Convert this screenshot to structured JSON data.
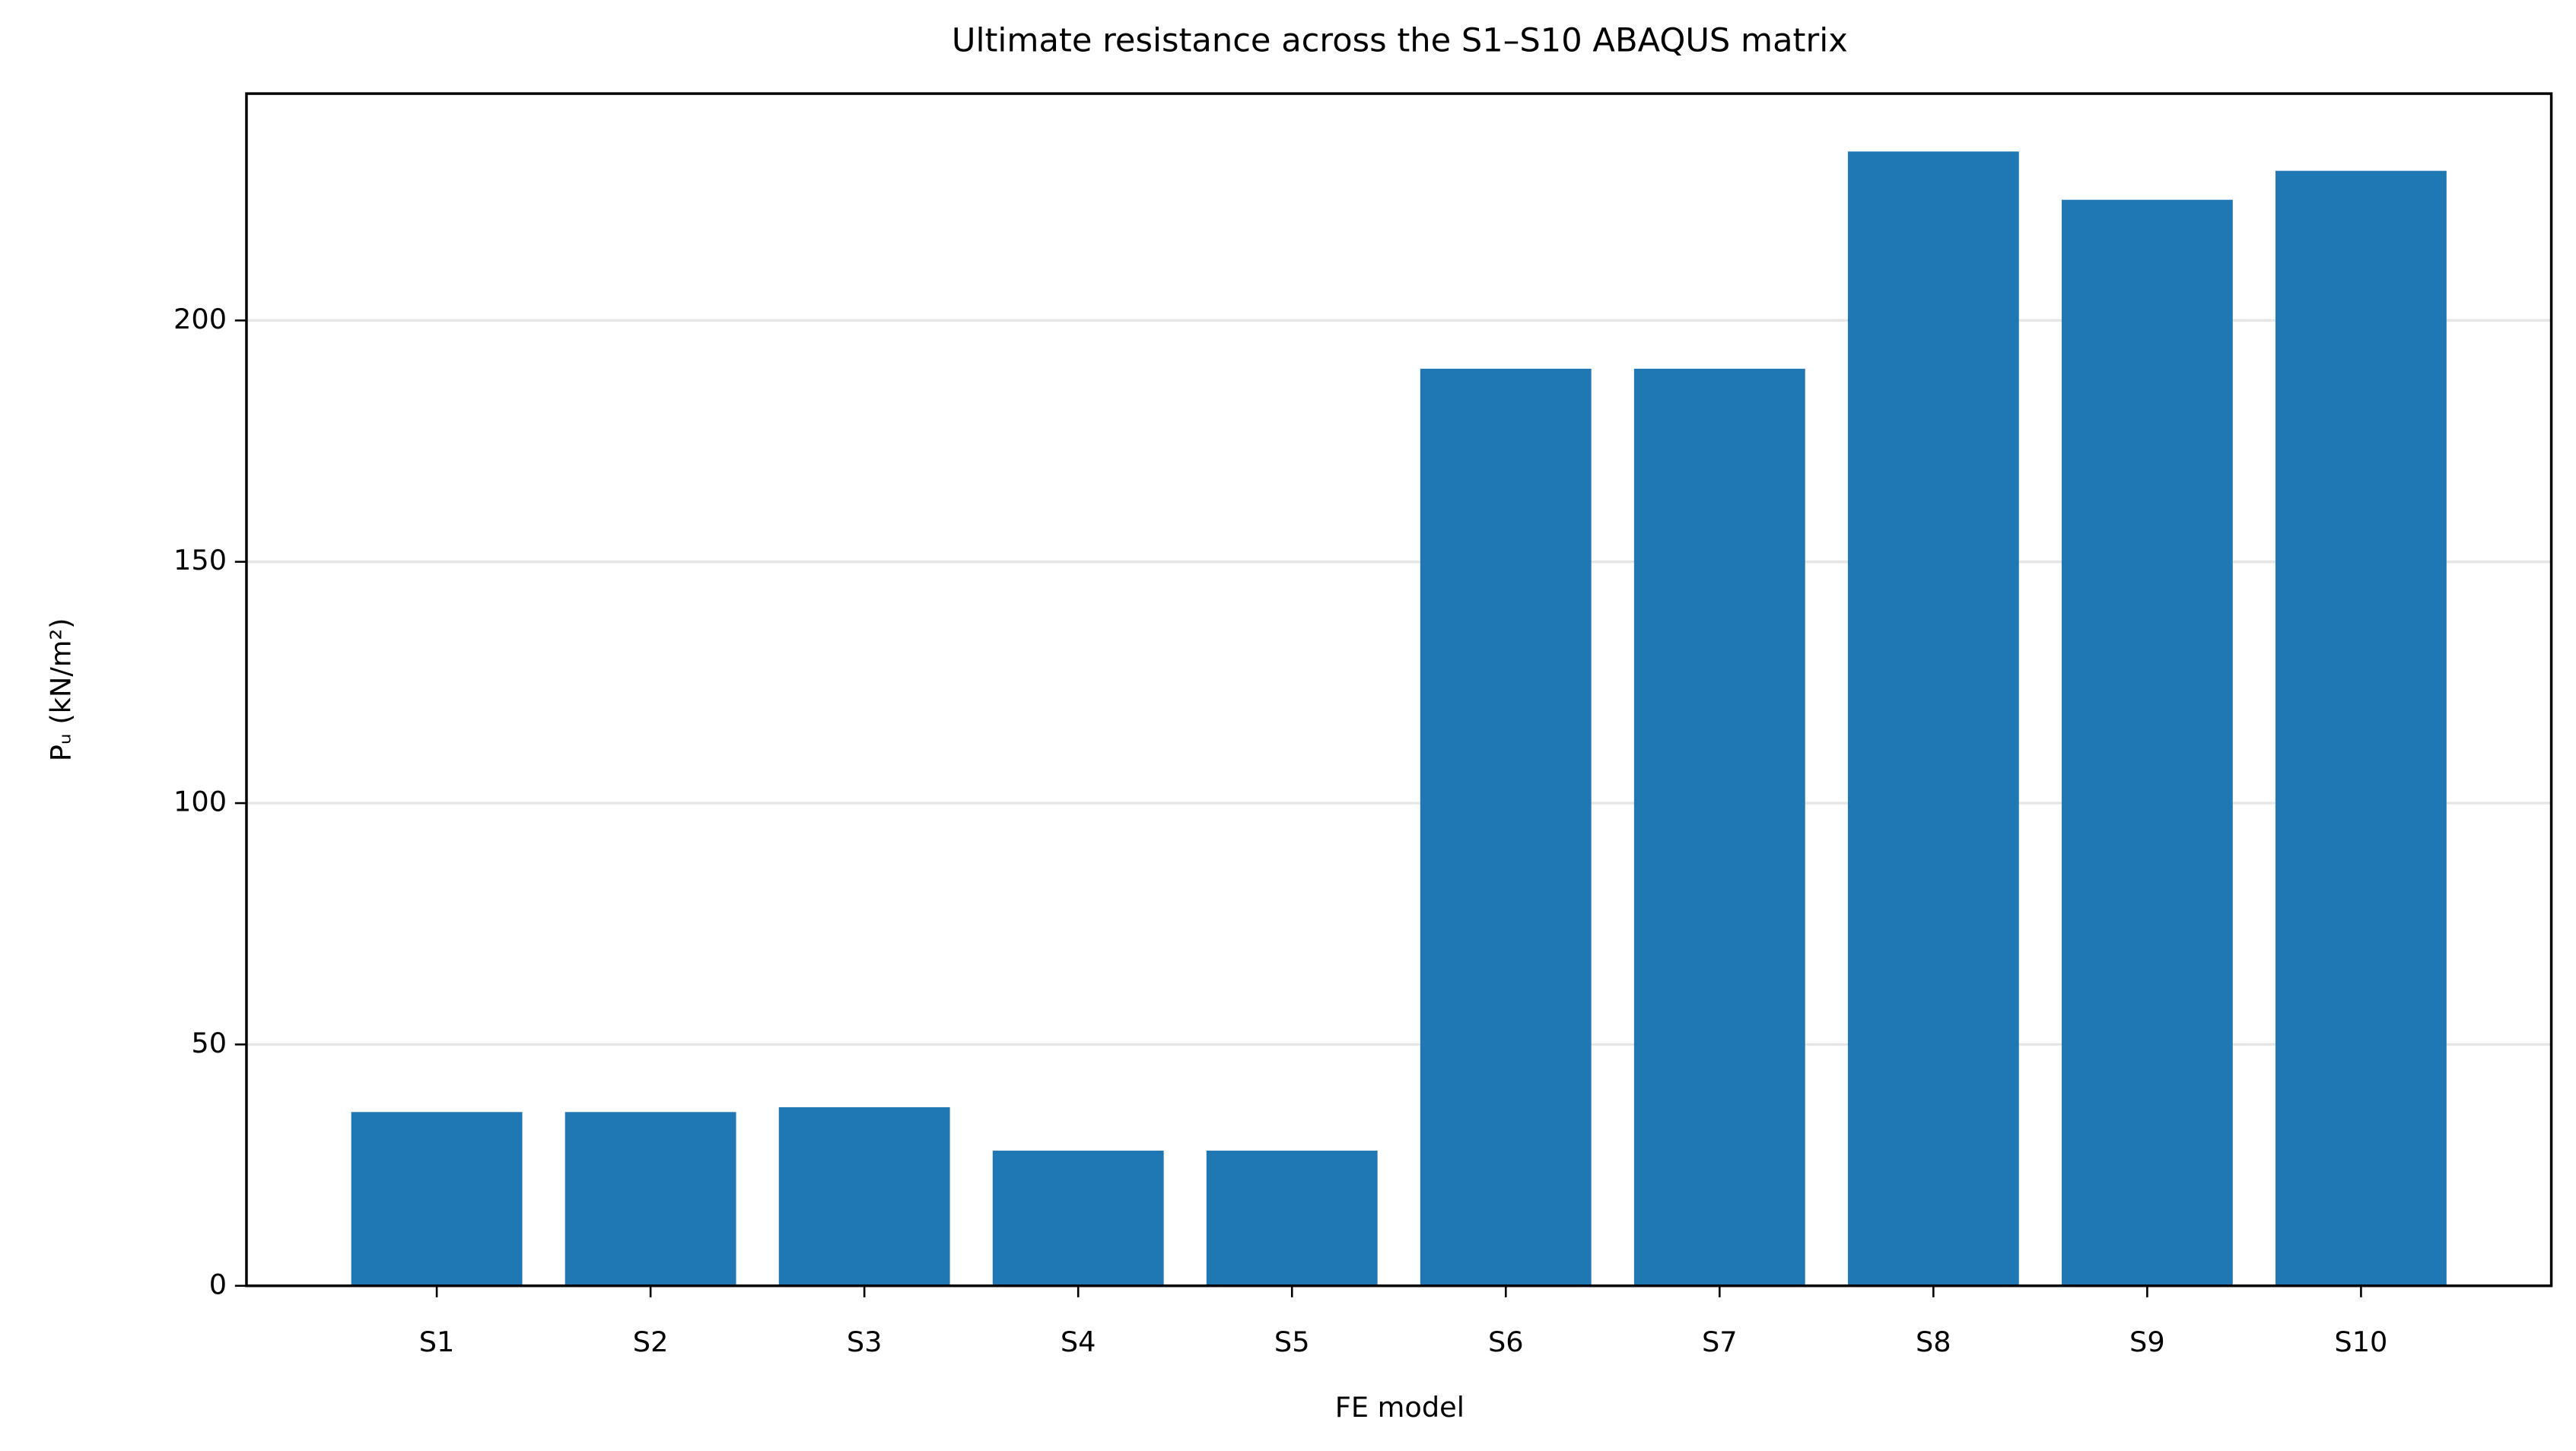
{
  "chart_data": {
    "type": "bar",
    "title": "Ultimate resistance across the S1–S10 ABAQUS matrix",
    "xlabel": "FE model",
    "ylabel": "Pᵤ (kN/m²)",
    "categories": [
      "S1",
      "S2",
      "S3",
      "S4",
      "S5",
      "S6",
      "S7",
      "S8",
      "S9",
      "S10"
    ],
    "values": [
      36,
      36,
      37,
      28,
      28,
      190,
      190,
      235,
      225,
      231
    ],
    "color": "#1f77b4",
    "ylim": [
      0,
      247
    ],
    "yticks": [
      0,
      50,
      100,
      150,
      200
    ],
    "grid": true
  }
}
